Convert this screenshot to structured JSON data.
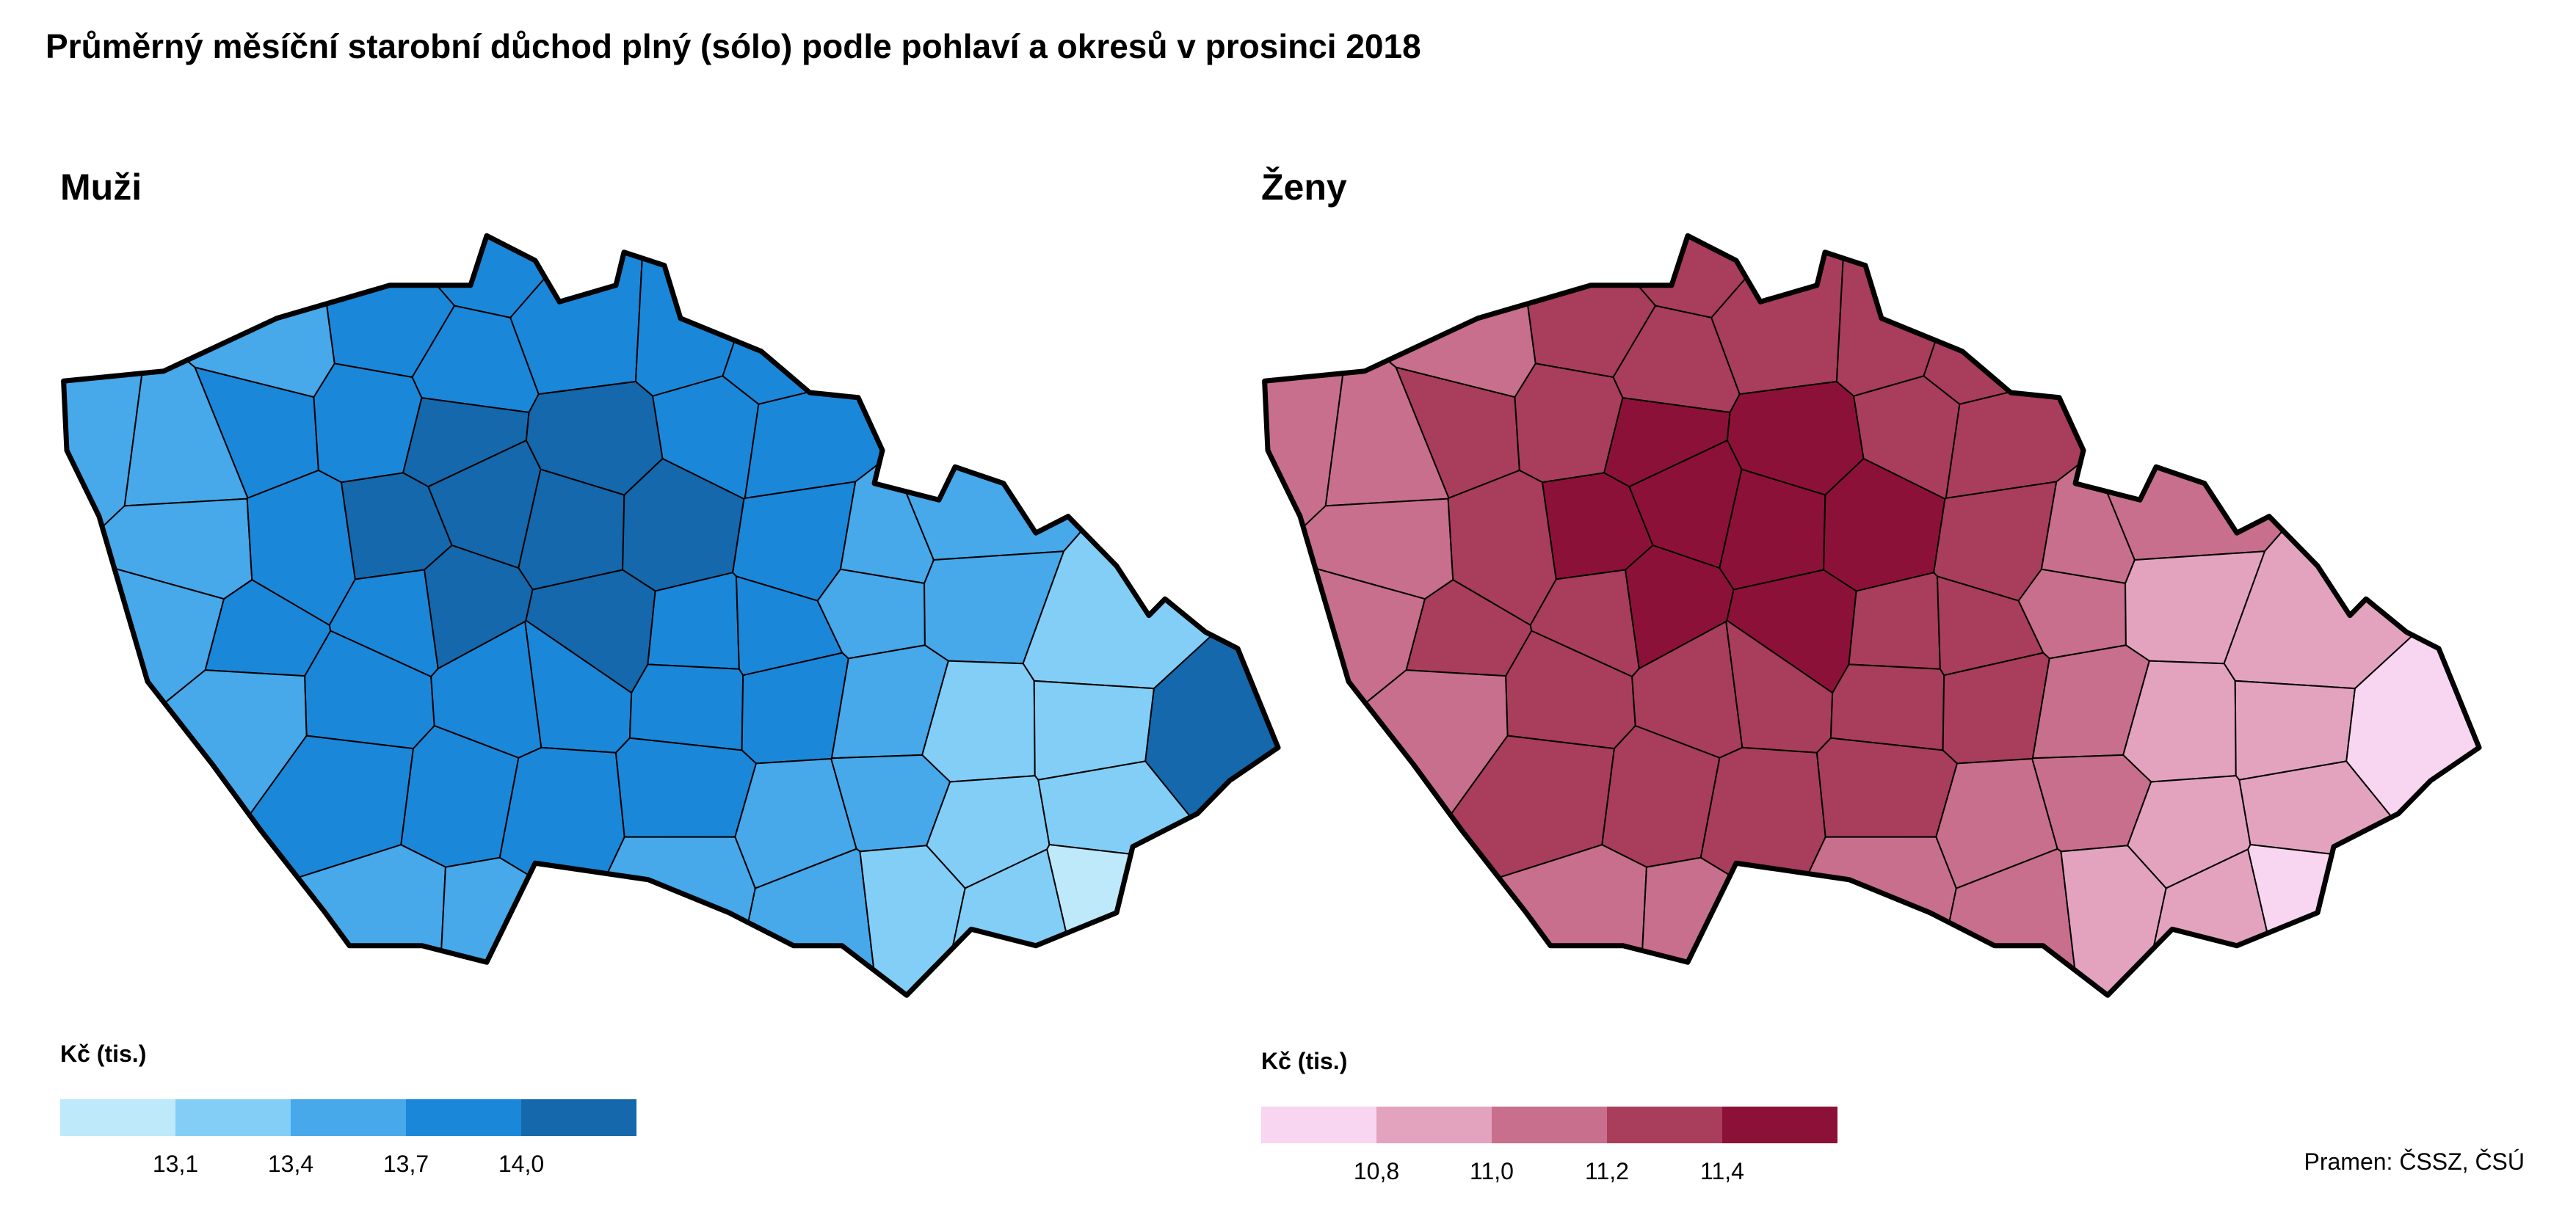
{
  "title": "Průměrný měsíční starobní důchod plný (sólo) podle pohlaví a okresů v prosinci 2018",
  "source": "Pramen: ČSSZ, ČSÚ",
  "panels": {
    "men": {
      "title": "Muži",
      "legend": {
        "title": "Kč (tis.)",
        "ticks": [
          "13,1",
          "13,4",
          "13,7",
          "14,0"
        ],
        "colors": [
          "#bde9fb",
          "#82cef7",
          "#47a8ea",
          "#1b87d9",
          "#1468ab"
        ]
      }
    },
    "women": {
      "title": "Ženy",
      "legend": {
        "title": "Kč (tis.)",
        "ticks": [
          "10,8",
          "11,0",
          "11,2",
          "11,4"
        ],
        "colors": [
          "#f8d5f0",
          "#e3a3bf",
          "#c86f8d",
          "#a93d5c",
          "#8c1138"
        ]
      }
    }
  }
}
